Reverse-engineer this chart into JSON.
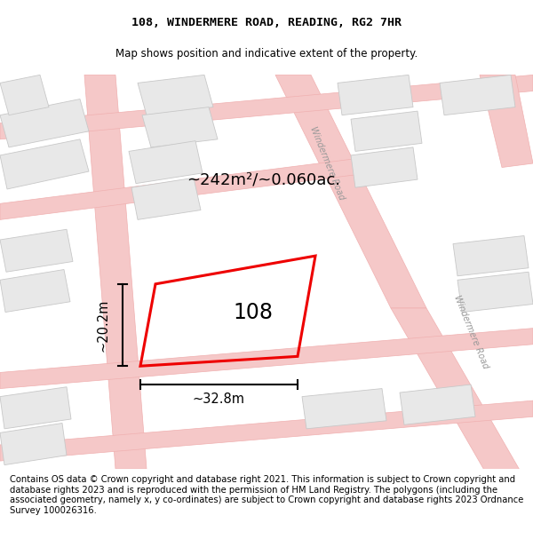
{
  "title_line1": "108, WINDERMERE ROAD, READING, RG2 7HR",
  "title_line2": "Map shows position and indicative extent of the property.",
  "area_text": "~242m²/~0.060ac.",
  "width_text": "~32.8m",
  "height_text": "~20.2m",
  "house_number": "108",
  "footer_text": "Contains OS data © Crown copyright and database right 2021. This information is subject to Crown copyright and database rights 2023 and is reproduced with the permission of HM Land Registry. The polygons (including the associated geometry, namely x, y co-ordinates) are subject to Crown copyright and database rights 2023 Ordnance Survey 100026316.",
  "road_pink": "#f5c8c8",
  "road_edge_pink": "#f0b0b0",
  "building_fill": "#e8e8e8",
  "building_edge": "#c8c8c8",
  "plot_red": "#ee0000",
  "road_label_color": "#aaaaaa",
  "title_fontsize": 9.5,
  "subtitle_fontsize": 8.5,
  "footer_fontsize": 7.2
}
